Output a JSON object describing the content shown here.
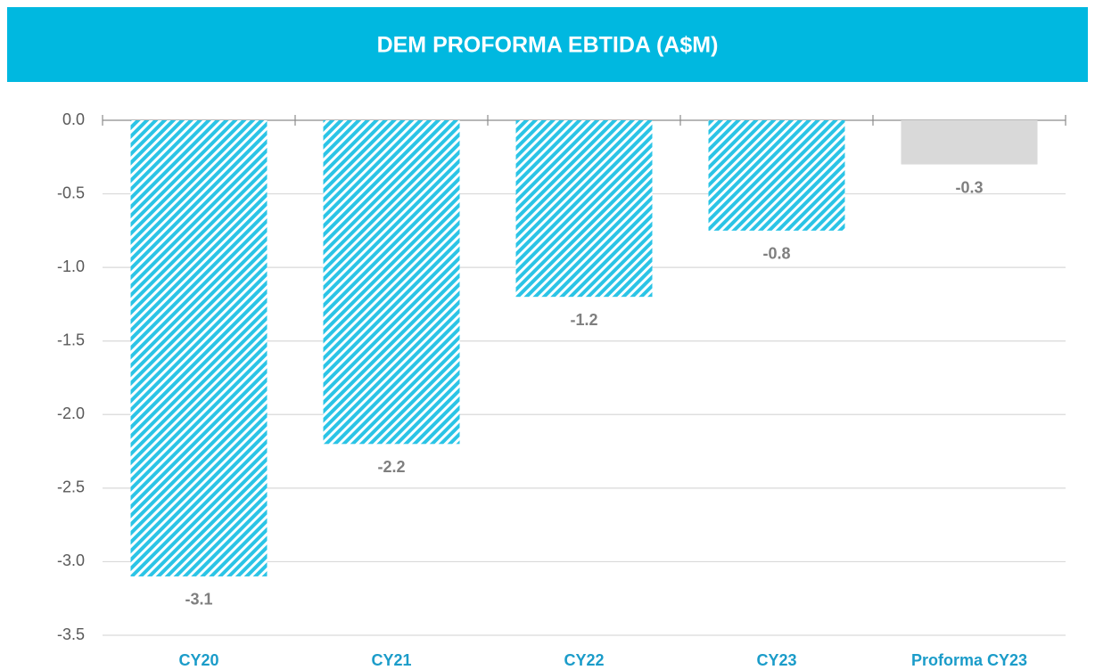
{
  "chart_data": {
    "type": "bar",
    "title": "DEM PROFORMA EBTIDA (A$M)",
    "categories": [
      "CY20",
      "CY21",
      "CY22",
      "CY23",
      "Proforma CY23"
    ],
    "values": [
      -3.1,
      -2.2,
      -1.2,
      -0.75,
      -0.3
    ],
    "value_labels": [
      "-3.1",
      "-2.2",
      "-1.2",
      "-0.8",
      "-0.3"
    ],
    "colors": [
      "#2bc4e6",
      "#2bc4e6",
      "#2bc4e6",
      "#2bc4e6",
      "#d9d9d9"
    ],
    "hatched": [
      true,
      true,
      true,
      true,
      false
    ],
    "ylim": [
      -3.5,
      0
    ],
    "yticks": [
      {
        "value": 0,
        "label": "0.0"
      },
      -0.5,
      {
        "value": -1,
        "label": "-1.0"
      },
      -1.5,
      {
        "value": -2,
        "label": "-2.0"
      },
      -2.5,
      {
        "value": -3,
        "label": "-3.0"
      },
      -3.5
    ],
    "grid": true
  }
}
